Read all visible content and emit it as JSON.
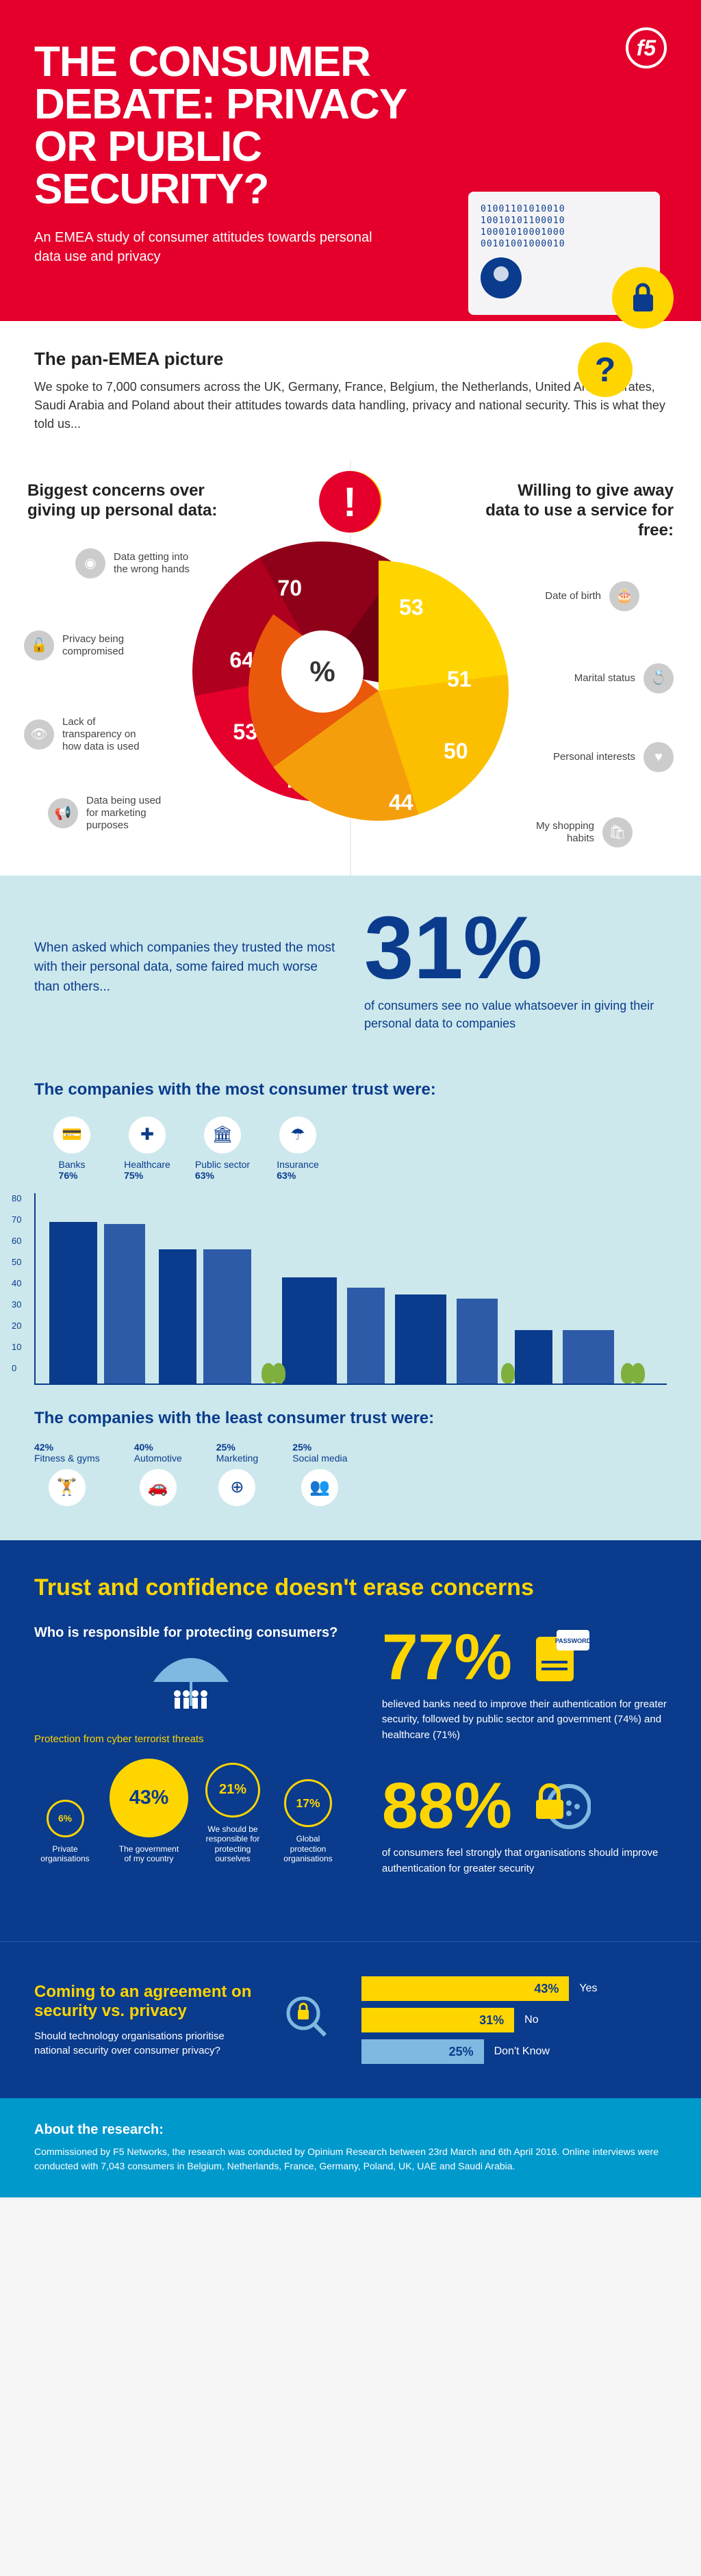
{
  "hero": {
    "title": "THE CONSUMER DEBATE: PRIVACY OR PUBLIC SECURITY?",
    "subtitle": "An EMEA study of consumer attitudes towards personal data use and privacy",
    "logo": "f5",
    "q": "?"
  },
  "intro": {
    "title": "The pan-EMEA picture",
    "body": "We spoke to 7,000 consumers across the UK, Germany, France, Belgium, the Netherlands, United Arab Emirates, Saudi Arabia and Poland about their attitudes towards data handling, privacy and national security. This is what they told us..."
  },
  "concerns": {
    "left_title": "Biggest concerns over giving up personal data:",
    "right_title": "Willing to give away data to use a service for free:",
    "center": "%",
    "excl": "!",
    "left_segs": [
      {
        "v": "70",
        "label": "Data getting into the wrong hands",
        "color": "#e4002b"
      },
      {
        "v": "64",
        "label": "Privacy being compromised",
        "color": "#b0001f"
      },
      {
        "v": "53",
        "label": "Lack of transparency on how data is used",
        "color": "#8f0019"
      },
      {
        "v": "48",
        "label": "Data being used for marketing purposes",
        "color": "#700013"
      }
    ],
    "right_segs": [
      {
        "v": "53",
        "label": "Date of birth",
        "color": "#ffd500"
      },
      {
        "v": "51",
        "label": "Marital status",
        "color": "#fbbf00"
      },
      {
        "v": "50",
        "label": "Personal interests",
        "color": "#f59e0b"
      },
      {
        "v": "44",
        "label": "My shopping habits",
        "color": "#ea580c"
      }
    ]
  },
  "teal": {
    "text": "When asked which companies they trusted the most with their personal data, some faired much worse than others...",
    "num": "31%",
    "cap": "of consumers see no value whatsoever in giving their personal data to companies"
  },
  "city": {
    "most_title": "The companies with the most consumer trust were:",
    "least_title": "The companies with the least consumer trust were:",
    "most": [
      {
        "label": "Banks",
        "pct": "76%",
        "icon": "💳"
      },
      {
        "label": "Healthcare",
        "pct": "75%",
        "icon": "✚"
      },
      {
        "label": "Public sector",
        "pct": "63%",
        "icon": "🏛"
      },
      {
        "label": "Insurance",
        "pct": "63%",
        "icon": "☂"
      }
    ],
    "least": [
      {
        "label": "Fitness & gyms",
        "pct": "42%",
        "icon": "🏋"
      },
      {
        "label": "Automotive",
        "pct": "40%",
        "icon": "🚗"
      },
      {
        "label": "Marketing",
        "pct": "25%",
        "icon": "⊕"
      },
      {
        "label": "Social media",
        "pct": "25%",
        "icon": "👥"
      }
    ],
    "axis": [
      80,
      70,
      60,
      50,
      40,
      30,
      20,
      10,
      0
    ]
  },
  "navy": {
    "title": "Trust and confidence doesn't erase concerns",
    "who_title": "Who is responsible for protecting consumers?",
    "who_sub": "Protection from cyber terrorist threats",
    "circles": [
      {
        "v": "6%",
        "t": "Private organisations",
        "size": 55,
        "hollow": true
      },
      {
        "v": "43%",
        "t": "The government of my country",
        "size": 115,
        "hollow": false
      },
      {
        "v": "21%",
        "t": "We should be responsible for protecting ourselves",
        "size": 80,
        "hollow": true
      },
      {
        "v": "17%",
        "t": "Global protection organisations",
        "size": 70,
        "hollow": true
      }
    ],
    "stats": [
      {
        "num": "77%",
        "cap": "believed banks need to improve their authentication for greater security, followed by public sector and government (74%) and healthcare (71%)"
      },
      {
        "num": "88%",
        "cap": "of consumers feel strongly that organisations should improve authentication for greater security"
      }
    ]
  },
  "agree": {
    "title": "Coming to an agreement on security vs. privacy",
    "q": "Should technology organisations prioritise national security over consumer privacy?",
    "bars": [
      {
        "v": "43%",
        "w": 68,
        "label": "Yes",
        "cls": "y"
      },
      {
        "v": "31%",
        "w": 50,
        "label": "No",
        "cls": "y"
      },
      {
        "v": "25%",
        "w": 40,
        "label": "Don't Know",
        "cls": "b"
      }
    ]
  },
  "foot": {
    "title": "About the research:",
    "body": "Commissioned by F5 Networks, the research was conducted by Opinium Research between 23rd March and 6th April 2016. Online interviews were conducted with 7,043 consumers in Belgium, Netherlands, France, Germany, Poland, UK, UAE and Saudi Arabia."
  }
}
